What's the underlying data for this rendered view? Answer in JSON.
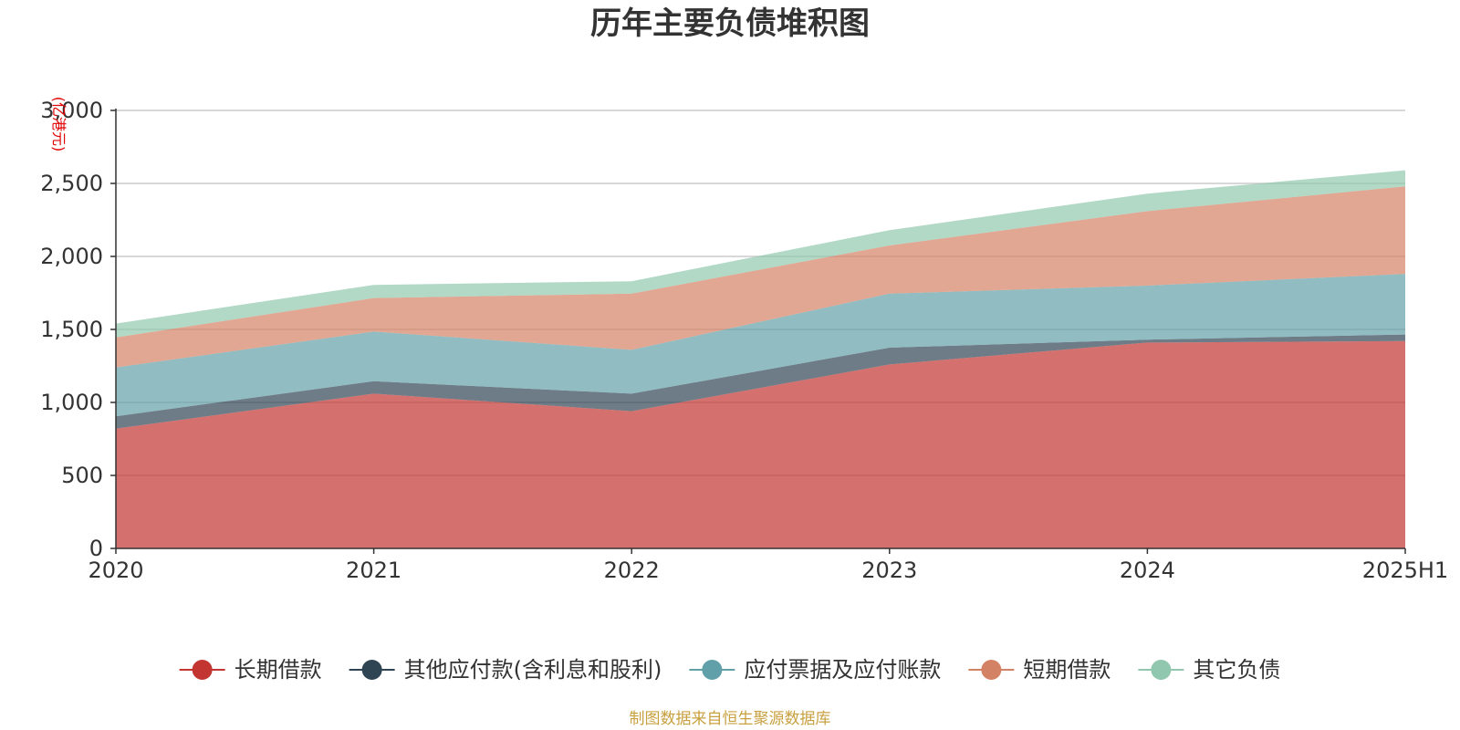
{
  "chart_data": {
    "type": "area",
    "stacked": true,
    "title": "历年主要负债堆积图",
    "y_unit_label": "(亿港元)",
    "x": [
      "2020",
      "2021",
      "2022",
      "2023",
      "2024",
      "2025H1"
    ],
    "ylim": [
      0,
      3000
    ],
    "yticks": [
      0,
      500,
      1000,
      1500,
      2000,
      2500,
      3000
    ],
    "ytick_labels": [
      "0",
      "500",
      "1,000",
      "1,500",
      "2,000",
      "2,500",
      "3,000"
    ],
    "grid": true,
    "legend_position": "bottom",
    "series": [
      {
        "name": "长期借款",
        "color": "#c23531",
        "values": [
          820,
          1060,
          940,
          1260,
          1410,
          1420
        ]
      },
      {
        "name": "其他应付款(含利息和股利)",
        "color": "#2f4554",
        "values": [
          85,
          85,
          120,
          115,
          20,
          45
        ]
      },
      {
        "name": "应付票据及应付账款",
        "color": "#61a0a8",
        "values": [
          335,
          340,
          300,
          370,
          370,
          415
        ]
      },
      {
        "name": "短期借款",
        "color": "#d48265",
        "values": [
          205,
          230,
          385,
          330,
          510,
          600
        ]
      },
      {
        "name": "其它负债",
        "color": "#91c7ae",
        "values": [
          95,
          90,
          85,
          105,
          120,
          110
        ]
      }
    ]
  },
  "source_note": "制图数据来自恒生聚源数据库"
}
